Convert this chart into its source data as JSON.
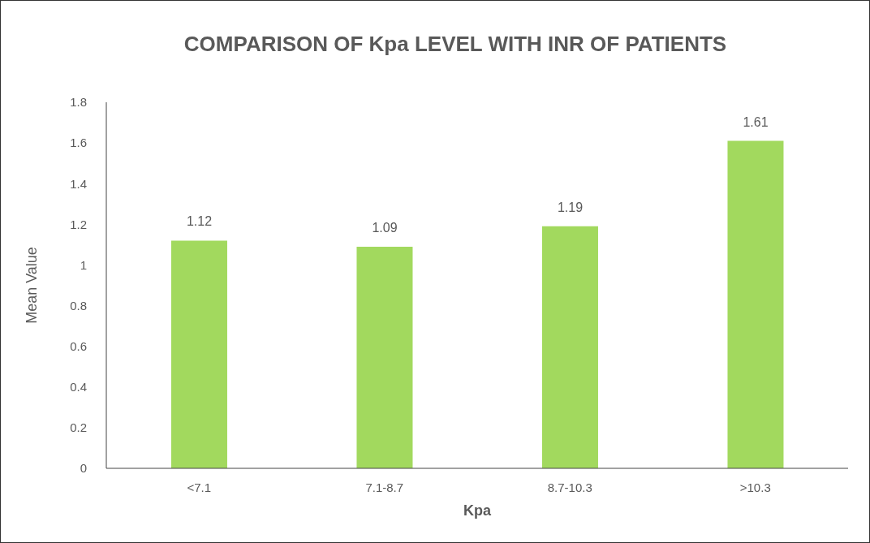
{
  "chart_data": {
    "type": "bar",
    "title": "COMPARISON OF Kpa LEVEL WITH INR OF PATIENTS",
    "xlabel": "Kpa",
    "ylabel": "Mean Value",
    "categories": [
      "<7.1",
      "7.1-8.7",
      "8.7-10.3",
      ">10.3"
    ],
    "values": [
      1.12,
      1.09,
      1.19,
      1.61
    ],
    "color": "#a2d95e",
    "ylim": [
      0,
      1.8
    ],
    "yticks": [
      0,
      0.2,
      0.4,
      0.6,
      0.8,
      1,
      1.2,
      1.4,
      1.6,
      1.8
    ],
    "data_labels": true,
    "grid": false,
    "legend": false
  }
}
